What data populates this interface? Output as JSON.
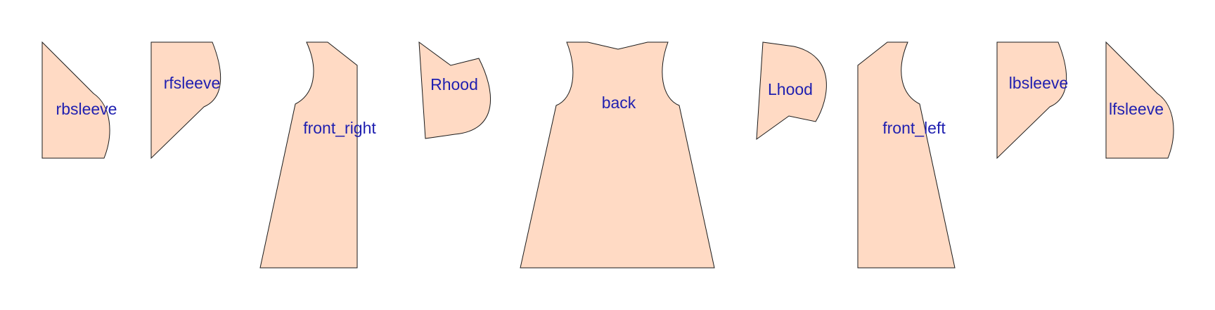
{
  "pieces": {
    "rbsleeve": "rbsleeve",
    "rfsleeve": "rfsleeve",
    "front_right": "front_right",
    "rhood": "Rhood",
    "back": "back",
    "lhood": "Lhood",
    "front_left": "front_left",
    "lbsleeve": "lbsleeve",
    "lfsleeve": "lfsleeve"
  },
  "colors": {
    "piece_fill": "#ffdac4",
    "outline": "#1a1a1a",
    "label": "#1f1fb0"
  }
}
